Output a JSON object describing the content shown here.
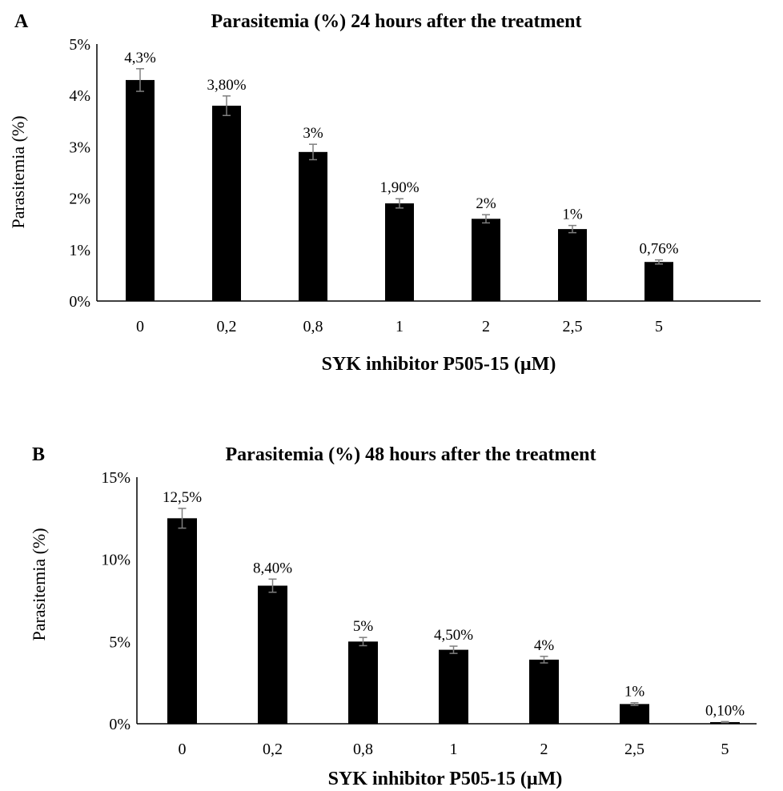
{
  "chart_data": [
    {
      "panel": "A",
      "type": "bar",
      "title": "Parasitemia (%) 24 hours after the treatment",
      "xlabel": "SYK inhibitor P505-15 (µM)",
      "ylabel": "Parasitemia (%)",
      "categories": [
        "0",
        "0,2",
        "0,8",
        "1",
        "2",
        "2,5",
        "5"
      ],
      "values": [
        4.3,
        3.8,
        2.9,
        1.9,
        1.6,
        1.4,
        0.76
      ],
      "errors": [
        0.22,
        0.19,
        0.15,
        0.09,
        0.08,
        0.07,
        0.04
      ],
      "data_labels": [
        "4,3%",
        "3,80%",
        "3%",
        "1,90%",
        "2%",
        "1%",
        "0,76%"
      ],
      "ylim": [
        0,
        5
      ],
      "yticks": [
        0,
        1,
        2,
        3,
        4,
        5
      ],
      "ytick_labels": [
        "0%",
        "1%",
        "2%",
        "3%",
        "4%",
        "5%"
      ],
      "grid": false,
      "bar_color": "#000000"
    },
    {
      "panel": "B",
      "type": "bar",
      "title": "Parasitemia (%) 48 hours after the treatment",
      "xlabel": "SYK inhibitor P505-15 (µM)",
      "ylabel": "Parasitemia (%)",
      "categories": [
        "0",
        "0,2",
        "0,8",
        "1",
        "2",
        "2,5",
        "5"
      ],
      "values": [
        12.5,
        8.4,
        5.0,
        4.5,
        3.9,
        1.2,
        0.1
      ],
      "errors": [
        0.6,
        0.4,
        0.25,
        0.22,
        0.2,
        0.08,
        0.03
      ],
      "data_labels": [
        "12,5%",
        "8,40%",
        "5%",
        "4,50%",
        "4%",
        "1%",
        "0,10%"
      ],
      "ylim": [
        0,
        15
      ],
      "yticks": [
        0,
        5,
        10,
        15
      ],
      "ytick_labels": [
        "0%",
        "5%",
        "10%",
        "15%"
      ],
      "grid": false,
      "bar_color": "#000000"
    }
  ]
}
